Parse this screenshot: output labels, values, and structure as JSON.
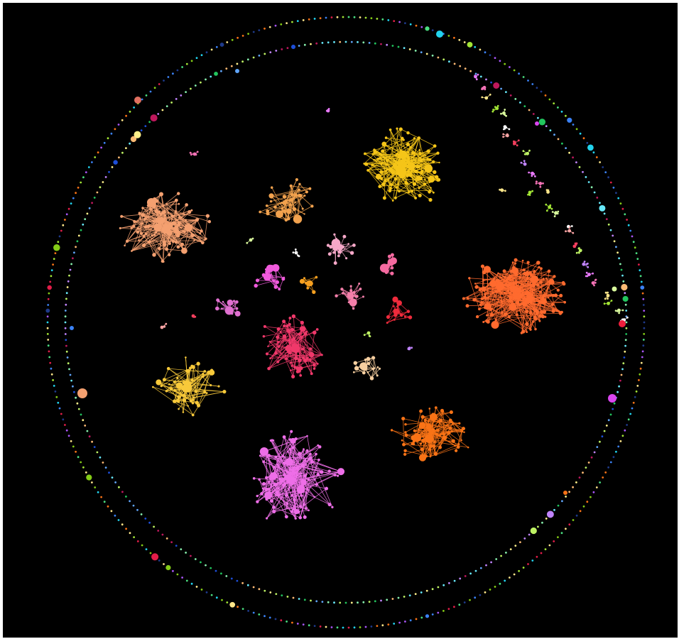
{
  "diagram": {
    "kind": "force-directed network graph with circular periphery of disconnected nodes",
    "background": "#000000",
    "rings": [
      {
        "name": "outer-ring",
        "dot_palette": [
          "#4ade80",
          "#3b82f6",
          "#e11d48",
          "#a3e635",
          "#f97316",
          "#a855f7",
          "#22d3ee",
          "#fde68a",
          "#84cc16",
          "#1e3a8a"
        ]
      },
      {
        "name": "inner-ring",
        "dot_palette": [
          "#86efac",
          "#60a5fa",
          "#be185d",
          "#bef264",
          "#fdba74",
          "#c084fc",
          "#67e8f9",
          "#fef08a",
          "#22c55e",
          "#1d4ed8"
        ]
      }
    ],
    "clusters": [
      {
        "name": "cluster-yellow-top",
        "color": "#f5c518",
        "size": "large"
      },
      {
        "name": "cluster-salmon-left",
        "color": "#f4a070",
        "size": "large"
      },
      {
        "name": "cluster-orange-right",
        "color": "#ff6a2e",
        "size": "largest"
      },
      {
        "name": "cluster-magenta-bottom",
        "color": "#ee6ee8",
        "size": "large"
      },
      {
        "name": "cluster-orange-lower-right",
        "color": "#f97316",
        "size": "medium"
      },
      {
        "name": "cluster-crimson-center",
        "color": "#f0386a",
        "size": "medium"
      },
      {
        "name": "cluster-gold-lower-left",
        "color": "#f8c93a",
        "size": "medium"
      },
      {
        "name": "cluster-tan-upper",
        "color": "#f2a24e",
        "size": "small"
      },
      {
        "name": "cluster-pink-center",
        "color": "#f6a8c8",
        "size": "small"
      },
      {
        "name": "cluster-peach-center",
        "color": "#f7cfa0",
        "size": "small"
      },
      {
        "name": "cluster-rose-center",
        "color": "#f57faa",
        "size": "small"
      },
      {
        "name": "cluster-red-center",
        "color": "#ef2b3c",
        "size": "small"
      },
      {
        "name": "cluster-violet-left",
        "color": "#f05adc",
        "size": "small"
      },
      {
        "name": "cluster-orchid-left",
        "color": "#e070d0",
        "size": "small"
      },
      {
        "name": "cluster-amber-center",
        "color": "#f7a020",
        "size": "small"
      },
      {
        "name": "cluster-hotpink-right",
        "color": "#f56aa0",
        "size": "small"
      }
    ]
  }
}
